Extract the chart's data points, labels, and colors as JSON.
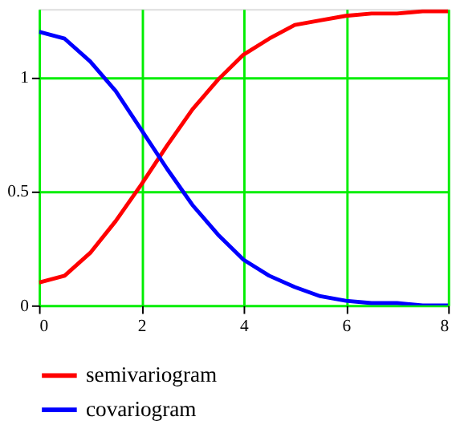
{
  "chart_data": {
    "type": "line",
    "x": [
      0,
      0.5,
      1,
      1.5,
      2,
      2.5,
      3,
      3.5,
      4,
      4.5,
      5,
      5.5,
      6,
      6.5,
      7,
      7.5,
      8
    ],
    "series": [
      {
        "name": "semivariogram",
        "color": "#ff0000",
        "values": [
          0.1,
          0.13,
          0.23,
          0.37,
          0.53,
          0.7,
          0.86,
          0.99,
          1.1,
          1.17,
          1.23,
          1.25,
          1.27,
          1.28,
          1.28,
          1.29,
          1.29
        ]
      },
      {
        "name": "covariogram",
        "color": "#0000ff",
        "values": [
          1.2,
          1.17,
          1.07,
          0.94,
          0.77,
          0.6,
          0.44,
          0.31,
          0.2,
          0.13,
          0.08,
          0.04,
          0.02,
          0.01,
          0.01,
          0,
          0
        ]
      }
    ],
    "xlim": [
      0,
      8
    ],
    "xticks": [
      0,
      2,
      4,
      6,
      8
    ],
    "ylim": [
      0,
      1.3
    ],
    "yticks": [
      0,
      0.5,
      1
    ],
    "grid": true,
    "legend": "bottom",
    "marker": "none",
    "line_style": "solid"
  }
}
